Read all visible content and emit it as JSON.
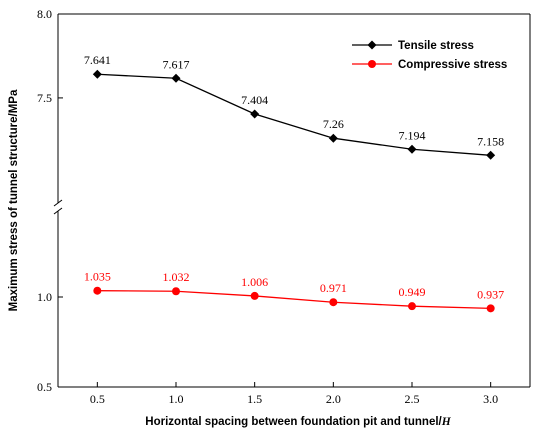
{
  "chart_data": {
    "type": "line",
    "x": [
      0.5,
      1.0,
      1.5,
      2.0,
      2.5,
      3.0
    ],
    "x_tick_labels": [
      "0.5",
      "1.0",
      "1.5",
      "2.0",
      "2.5",
      "3.0"
    ],
    "xlim": [
      0.25,
      3.25
    ],
    "xlabel_prefix": "Horizontal spacing between foundation pit and tunnel/",
    "xlabel_var": "H",
    "ylabel": "Maximum stress of tunnel structure/MPa",
    "axis_break": true,
    "y_segments": [
      {
        "range": [
          0.5,
          1.5
        ],
        "ticks": [
          "0.5",
          "1.0"
        ],
        "tick_values": [
          0.5,
          1.0
        ]
      },
      {
        "range": [
          6.85,
          8.0
        ],
        "ticks": [
          "7.5",
          "8.0"
        ],
        "tick_values": [
          7.5,
          8.0
        ]
      }
    ],
    "series": [
      {
        "name": "Tensile stress",
        "color": "#000000",
        "marker": "diamond",
        "values": [
          7.641,
          7.617,
          7.404,
          7.26,
          7.194,
          7.158
        ],
        "labels": [
          "7.641",
          "7.617",
          "7.404",
          "7.26",
          "7.194",
          "7.158"
        ]
      },
      {
        "name": "Compressive stress",
        "color": "#ff0000",
        "marker": "circle",
        "values": [
          1.035,
          1.032,
          1.006,
          0.971,
          0.949,
          0.937
        ],
        "labels": [
          "1.035",
          "1.032",
          "1.006",
          "0.971",
          "0.949",
          "0.937"
        ]
      }
    ],
    "legend_position": "top-right",
    "grid": false
  }
}
